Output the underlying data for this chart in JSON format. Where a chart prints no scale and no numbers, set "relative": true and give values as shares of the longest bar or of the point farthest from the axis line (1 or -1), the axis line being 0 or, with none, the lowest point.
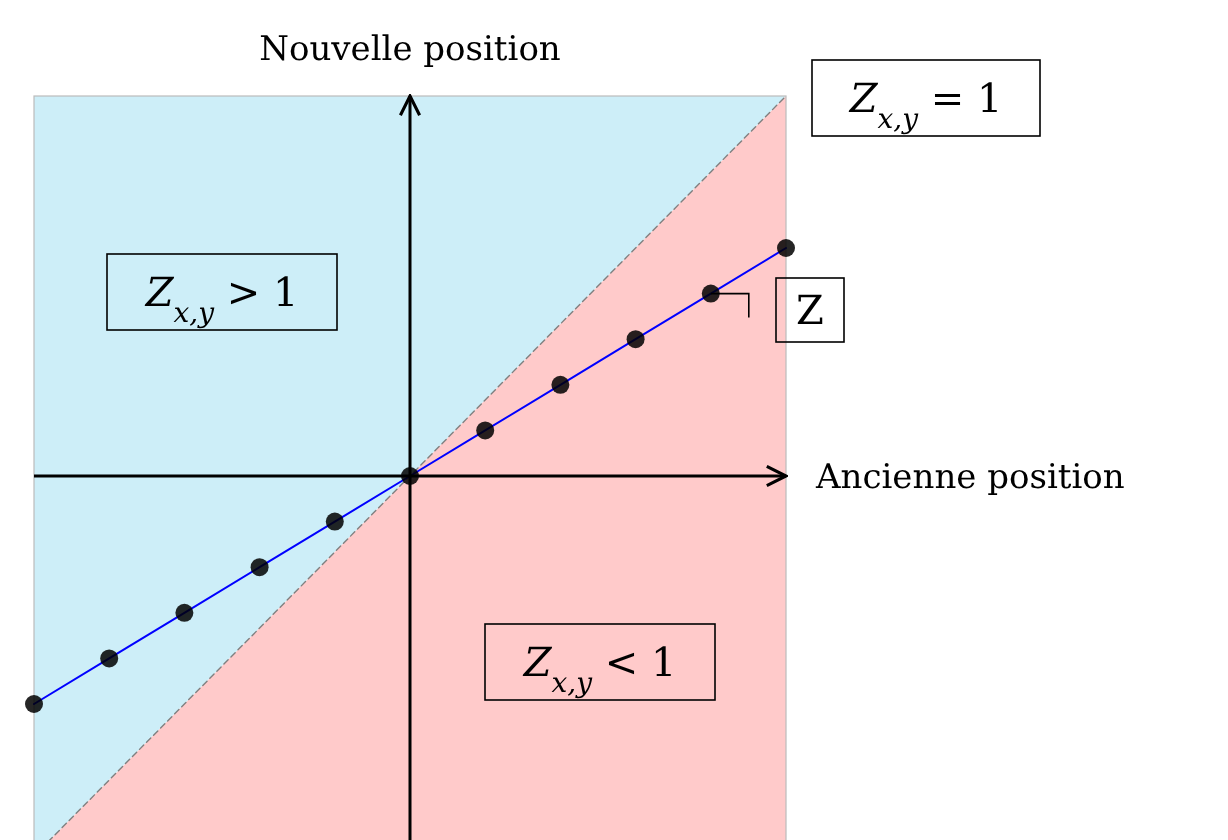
{
  "chart_data": {
    "type": "line",
    "relative": true,
    "xlabel": "Ancienne position",
    "ylabel": "Nouvelle position",
    "categories": [
      null,
      null,
      null,
      null,
      null,
      null,
      null,
      null,
      null,
      null,
      null
    ],
    "series": [
      {
        "color": "#808080",
        "line_style": "dashed",
        "marker": "none",
        "values": [
          -1,
          -0.8,
          -0.6,
          -0.4,
          -0.2,
          0,
          0.2,
          0.4,
          0.6,
          0.8,
          1
        ]
      },
      {
        "color": "#0000ff",
        "line_style": "solid",
        "marker": "circle",
        "values": [
          -0.6,
          -0.48,
          -0.36,
          -0.24,
          -0.12,
          0,
          0.12,
          0.24,
          0.36,
          0.48,
          0.6
        ]
      }
    ],
    "annotations": [
      "Z$_{x,y}$ = 1",
      "Z$_{x,y}$ > 1",
      "Z$_{x,y}$ < 1",
      "Z"
    ]
  }
}
